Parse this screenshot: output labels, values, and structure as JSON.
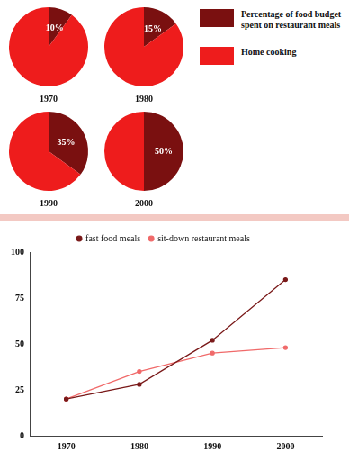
{
  "chart_data": [
    {
      "type": "pie",
      "title": "1970",
      "categories": [
        "Percentage of food budget spent on restaurant meals",
        "Home cooking"
      ],
      "values": [
        10,
        90
      ],
      "value_labels": [
        "10%",
        null
      ],
      "colors": [
        "#7a1010",
        "#ee1c1c"
      ],
      "data_labels": true,
      "legend": "right"
    },
    {
      "type": "pie",
      "title": "1980",
      "categories": [
        "Percentage of food budget spent on restaurant meals",
        "Home cooking"
      ],
      "values": [
        15,
        85
      ],
      "value_labels": [
        "15%",
        null
      ],
      "colors": [
        "#7a1010",
        "#ee1c1c"
      ],
      "data_labels": true
    },
    {
      "type": "pie",
      "title": "1990",
      "categories": [
        "Percentage of food budget spent on restaurant meals",
        "Home cooking"
      ],
      "values": [
        35,
        65
      ],
      "value_labels": [
        "35%",
        null
      ],
      "colors": [
        "#7a1010",
        "#ee1c1c"
      ],
      "data_labels": true
    },
    {
      "type": "pie",
      "title": "2000",
      "categories": [
        "Percentage of food budget spent on restaurant meals",
        "Home cooking"
      ],
      "values": [
        50,
        50
      ],
      "value_labels": [
        "50%",
        null
      ],
      "colors": [
        "#7a1010",
        "#ee1c1c"
      ],
      "data_labels": true
    },
    {
      "type": "line",
      "categories": [
        "1970",
        "1980",
        "1990",
        "2000"
      ],
      "series": [
        {
          "name": "fast food meals",
          "color": "#7a1a1a",
          "values": [
            20,
            28,
            52,
            85
          ],
          "marker": "circle",
          "line_style": "solid"
        },
        {
          "name": "sit-down restaurant meals",
          "color": "#f06a6a",
          "values": [
            20,
            35,
            45,
            48
          ],
          "marker": "circle",
          "line_style": "solid"
        }
      ],
      "ylim": [
        0,
        100
      ],
      "yticks": [
        0,
        25,
        50,
        75,
        100
      ],
      "grid": false,
      "legend": "top"
    }
  ]
}
